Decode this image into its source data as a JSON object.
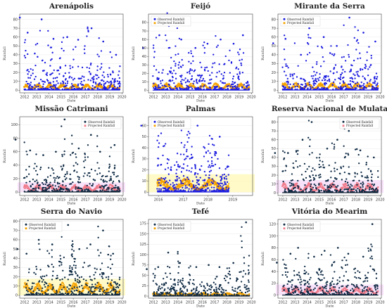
{
  "figure": {
    "common_xlabel": "Date",
    "common_ylabel": "Rainfall",
    "legend": {
      "observed": "Observed Rainfall",
      "projected": "Projected Rainfall"
    }
  },
  "colors": {
    "observed": "#1a1adf",
    "projected": "#f5a300",
    "dark_point": "#0e2a44",
    "projected_pink": "#f07a8a",
    "band_yellow": "#fff59a",
    "band_pink": "#f3ccf6"
  },
  "chart_data": [
    {
      "type": "scatter",
      "title": "Arenápolis",
      "xticks": [
        2012,
        2013,
        2014,
        2015,
        2016,
        2017,
        2018,
        2019,
        2020
      ],
      "xlim": [
        2011.6,
        2020.1
      ],
      "yticks": [
        0,
        10,
        20,
        30,
        40,
        50,
        60,
        70,
        80
      ],
      "ylim": [
        -3,
        86
      ],
      "observed_peaks": [
        82,
        65,
        80,
        58,
        60,
        57,
        70,
        55,
        40
      ],
      "projected_level": 5,
      "observed_color": "blue",
      "legend_position": "none",
      "band": "none"
    },
    {
      "type": "scatter",
      "title": "Feijó",
      "xticks": [
        2012,
        2013,
        2014,
        2015,
        2016,
        2017,
        2018,
        2019,
        2020
      ],
      "xlim": [
        2011.6,
        2020.1
      ],
      "yticks": [
        0,
        10,
        20,
        30,
        40,
        50,
        60,
        70,
        80
      ],
      "ylim": [
        -3,
        90
      ],
      "observed_peaks": [
        50,
        65,
        85,
        60,
        50,
        55,
        60,
        55,
        65
      ],
      "projected_level": 6,
      "observed_color": "blue",
      "legend_position": "top-left",
      "band": "none"
    },
    {
      "type": "scatter",
      "title": "Mirante da Serra",
      "xticks": [
        2012,
        2013,
        2014,
        2015,
        2016,
        2017,
        2018,
        2019,
        2020
      ],
      "xlim": [
        2011.6,
        2020.1
      ],
      "yticks": [
        0,
        10,
        20,
        30,
        40,
        50,
        60,
        70,
        80
      ],
      "ylim": [
        -3,
        86
      ],
      "observed_peaks": [
        53,
        58,
        40,
        70,
        60,
        50,
        82,
        65,
        55
      ],
      "projected_level": 6,
      "observed_color": "blue",
      "legend_position": "top-left",
      "band": "none"
    },
    {
      "type": "scatter",
      "title": "Missão Catrimani",
      "xticks": [
        2012,
        2013,
        2014,
        2015,
        2016,
        2017,
        2018,
        2019,
        2020
      ],
      "xlim": [
        2011.6,
        2020.1
      ],
      "yticks": [
        0,
        20,
        40,
        60,
        80,
        100
      ],
      "ylim": [
        -5,
        112
      ],
      "observed_peaks": [
        78,
        62,
        55,
        60,
        108,
        65,
        85,
        60,
        70
      ],
      "projected_level": 8,
      "observed_color": "dark",
      "legend_position": "top-right",
      "band": "pink"
    },
    {
      "type": "scatter",
      "title": "Palmas",
      "xticks": [
        2016,
        2017,
        2018,
        2019
      ],
      "xlim": [
        2015.6,
        2019.8
      ],
      "yticks": [
        0,
        10,
        20,
        30,
        40,
        50,
        60
      ],
      "ylim": [
        -3,
        68
      ],
      "observed_peaks": [
        60,
        65,
        60,
        50
      ],
      "projected_level": 9,
      "observed_color": "blue",
      "legend_position": "top-left",
      "band": "yellow"
    },
    {
      "type": "scatter",
      "title": "Reserva Nacional de Mulata",
      "xticks": [
        2012,
        2013,
        2014,
        2015,
        2016,
        2017,
        2018,
        2019,
        2020
      ],
      "xlim": [
        2011.6,
        2020.1
      ],
      "yticks": [
        0,
        10,
        20,
        30,
        40,
        50,
        60,
        70,
        80
      ],
      "ylim": [
        -3,
        86
      ],
      "observed_peaks": [
        45,
        45,
        60,
        80,
        50,
        60,
        70,
        48,
        40
      ],
      "projected_level": 8,
      "observed_color": "dark",
      "legend_position": "top-right",
      "band": "pink"
    },
    {
      "type": "scatter",
      "title": "Serra do Navio",
      "xticks": [
        2012,
        2013,
        2014,
        2015,
        2016,
        2017,
        2018,
        2019,
        2020
      ],
      "xlim": [
        2011.6,
        2020.1
      ],
      "yticks": [
        0,
        10,
        20,
        30,
        40,
        50,
        60,
        70,
        80
      ],
      "ylim": [
        -3,
        82
      ],
      "observed_peaks": [
        50,
        45,
        60,
        55,
        76,
        50,
        55,
        70,
        45
      ],
      "projected_level": 10,
      "observed_color": "dark",
      "legend_position": "top-left",
      "band": "yellow"
    },
    {
      "type": "scatter",
      "title": "Tefé",
      "xticks": [
        2012,
        2013,
        2014,
        2015,
        2016,
        2017,
        2018,
        2019,
        2020
      ],
      "xlim": [
        2011.6,
        2020.1
      ],
      "yticks": [
        0,
        25,
        50,
        75,
        100,
        125,
        150,
        175
      ],
      "ylim": [
        -5,
        185
      ],
      "observed_peaks": [
        65,
        70,
        105,
        80,
        70,
        75,
        70,
        80,
        178
      ],
      "projected_level": 6,
      "observed_color": "dark",
      "legend_position": "top-left",
      "band": "none"
    },
    {
      "type": "scatter",
      "title": "Vitória do Mearim",
      "xticks": [
        2012,
        2013,
        2014,
        2015,
        2016,
        2017,
        2018,
        2019,
        2020
      ],
      "xlim": [
        2011.6,
        2020.1
      ],
      "yticks": [
        0,
        20,
        40,
        60,
        80,
        100,
        120
      ],
      "ylim": [
        -5,
        128
      ],
      "observed_peaks": [
        55,
        70,
        80,
        65,
        75,
        80,
        70,
        65,
        120
      ],
      "projected_level": 10,
      "observed_color": "dark",
      "legend_position": "top-left",
      "band": "pink"
    }
  ]
}
